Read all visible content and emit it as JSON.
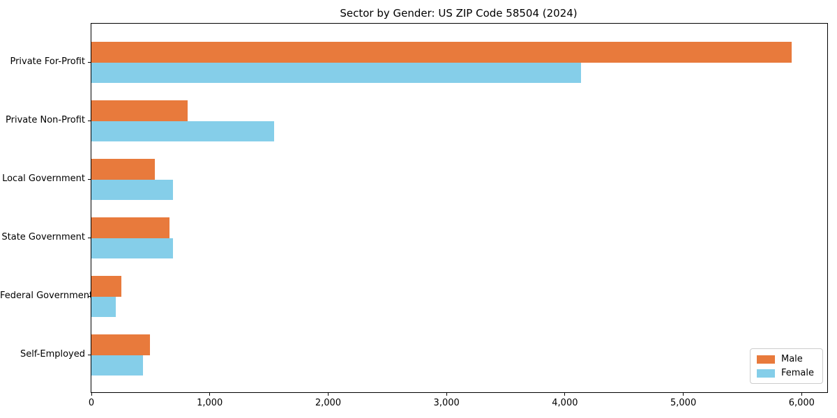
{
  "chart_data": {
    "type": "bar",
    "orientation": "horizontal",
    "title": "Sector by Gender: US ZIP Code 58504 (2024)",
    "xlabel": "",
    "ylabel": "",
    "categories": [
      "Private For-Profit",
      "Private Non-Profit",
      "Local Government",
      "State Government",
      "Federal Government",
      "Self-Employed"
    ],
    "series": [
      {
        "name": "Male",
        "color": "#e87a3c",
        "values": [
          5915,
          815,
          538,
          662,
          253,
          495
        ]
      },
      {
        "name": "Female",
        "color": "#85cee9",
        "values": [
          4135,
          1546,
          688,
          691,
          206,
          436
        ]
      }
    ],
    "xlim": [
      0,
      6216
    ],
    "xticks": {
      "values": [
        0,
        1000,
        2000,
        3000,
        4000,
        5000,
        6000
      ],
      "labels": [
        "0",
        "1,000",
        "2,000",
        "3,000",
        "4,000",
        "5,000",
        "6,000"
      ]
    },
    "grid": false,
    "legend": {
      "position": "lower right",
      "items": [
        "Male",
        "Female"
      ]
    },
    "colors": {
      "spine": "#000000",
      "background": "#ffffff",
      "legend_border": "#cccccc"
    }
  }
}
